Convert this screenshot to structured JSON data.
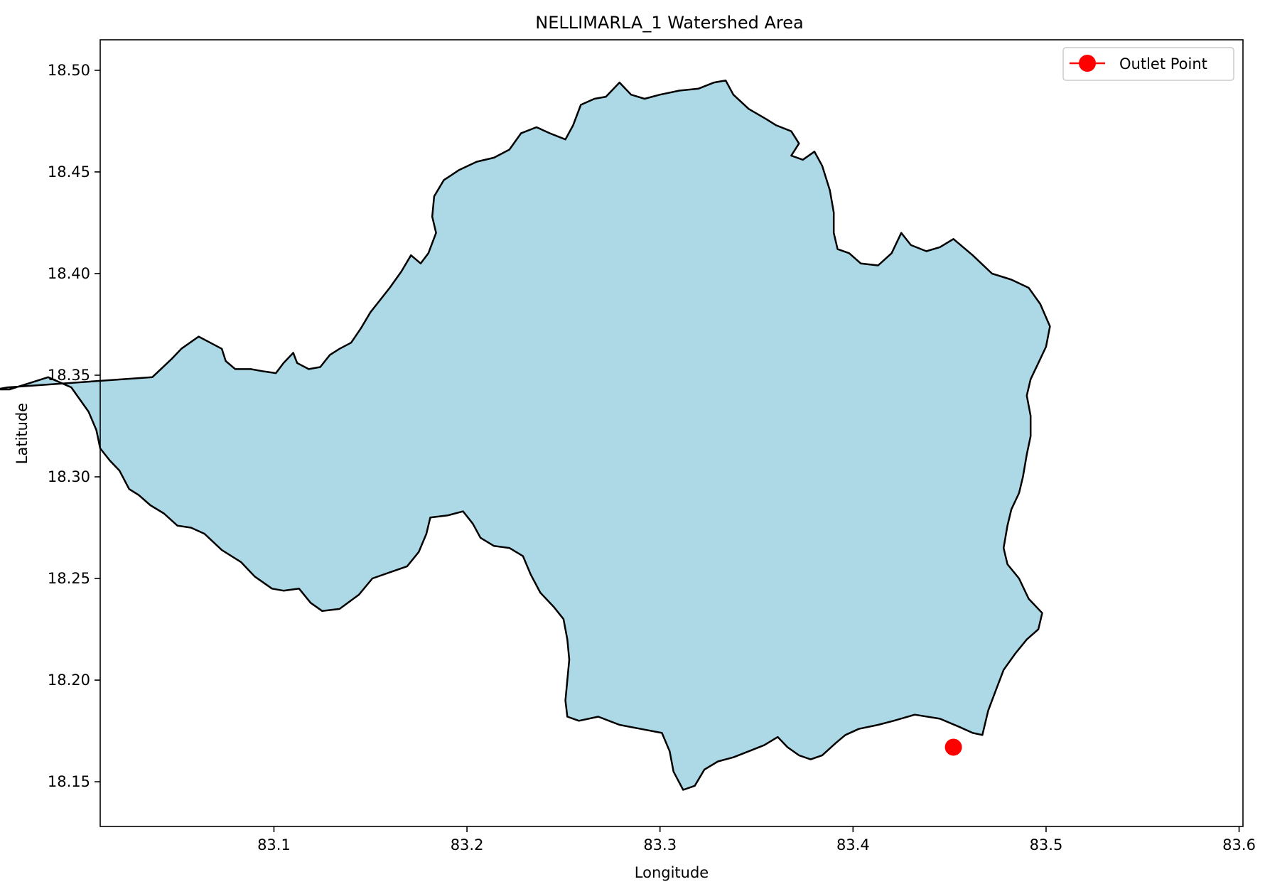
{
  "chart_data": {
    "type": "map",
    "title": "NELLIMARLA_1 Watershed Area",
    "xlabel": "Longitude",
    "ylabel": "Latitude",
    "xlim": [
      83.01,
      83.602
    ],
    "ylim": [
      18.128,
      18.515
    ],
    "xticks": [
      83.1,
      83.2,
      83.3,
      83.4,
      83.5,
      83.6
    ],
    "xtick_labels": [
      "83.1",
      "83.2",
      "83.3",
      "83.4",
      "83.5",
      "83.6"
    ],
    "yticks": [
      18.15,
      18.2,
      18.25,
      18.3,
      18.35,
      18.4,
      18.45,
      18.5
    ],
    "ytick_labels": [
      "18.15",
      "18.20",
      "18.25",
      "18.30",
      "18.35",
      "18.40",
      "18.45",
      "18.50"
    ],
    "grid": false,
    "legend": {
      "position": "top-right",
      "entries": [
        {
          "label": "Outlet Point",
          "color": "#ff0000",
          "marker": "circle"
        }
      ]
    },
    "watershed": {
      "fill": "#add8e6",
      "edge": "#000000",
      "boundary": [
        [
          83.037,
          18.349
        ],
        [
          83.047,
          18.358
        ],
        [
          83.052,
          18.363
        ],
        [
          83.061,
          18.369
        ],
        [
          83.067,
          18.366
        ],
        [
          83.073,
          18.363
        ],
        [
          83.075,
          18.357
        ],
        [
          83.08,
          18.353
        ],
        [
          83.088,
          18.353
        ],
        [
          83.094,
          18.352
        ],
        [
          83.101,
          18.351
        ],
        [
          83.105,
          18.356
        ],
        [
          83.11,
          18.361
        ],
        [
          83.112,
          18.356
        ],
        [
          83.118,
          18.353
        ],
        [
          83.124,
          18.354
        ],
        [
          83.129,
          18.36
        ],
        [
          83.134,
          18.363
        ],
        [
          83.14,
          18.366
        ],
        [
          83.145,
          18.373
        ],
        [
          83.15,
          18.381
        ],
        [
          83.155,
          18.387
        ],
        [
          83.16,
          18.393
        ],
        [
          83.166,
          18.401
        ],
        [
          83.171,
          18.409
        ],
        [
          83.176,
          18.405
        ],
        [
          83.18,
          18.41
        ],
        [
          83.184,
          18.42
        ],
        [
          83.182,
          18.428
        ],
        [
          83.183,
          18.438
        ],
        [
          83.188,
          18.446
        ],
        [
          83.196,
          18.451
        ],
        [
          83.205,
          18.455
        ],
        [
          83.214,
          18.457
        ],
        [
          83.222,
          18.461
        ],
        [
          83.228,
          18.469
        ],
        [
          83.236,
          18.472
        ],
        [
          83.243,
          18.469
        ],
        [
          83.251,
          18.466
        ],
        [
          83.255,
          18.473
        ],
        [
          83.259,
          18.483
        ],
        [
          83.266,
          18.486
        ],
        [
          83.272,
          18.487
        ],
        [
          83.279,
          18.494
        ],
        [
          83.285,
          18.488
        ],
        [
          83.292,
          18.486
        ],
        [
          83.3,
          18.488
        ],
        [
          83.31,
          18.49
        ],
        [
          83.32,
          18.491
        ],
        [
          83.328,
          18.494
        ],
        [
          83.334,
          18.495
        ],
        [
          83.338,
          18.488
        ],
        [
          83.346,
          18.481
        ],
        [
          83.355,
          18.476
        ],
        [
          83.36,
          18.473
        ],
        [
          83.368,
          18.47
        ],
        [
          83.372,
          18.464
        ],
        [
          83.368,
          18.458
        ],
        [
          83.374,
          18.456
        ],
        [
          83.38,
          18.46
        ],
        [
          83.384,
          18.453
        ],
        [
          83.388,
          18.441
        ],
        [
          83.39,
          18.43
        ],
        [
          83.39,
          18.42
        ],
        [
          83.392,
          18.412
        ],
        [
          83.398,
          18.41
        ],
        [
          83.404,
          18.405
        ],
        [
          83.413,
          18.404
        ],
        [
          83.42,
          18.41
        ],
        [
          83.425,
          18.42
        ],
        [
          83.43,
          18.414
        ],
        [
          83.438,
          18.411
        ],
        [
          83.445,
          18.413
        ],
        [
          83.452,
          18.417
        ],
        [
          83.462,
          18.409
        ],
        [
          83.472,
          18.4
        ],
        [
          83.482,
          18.397
        ],
        [
          83.491,
          18.393
        ],
        [
          83.497,
          18.385
        ],
        [
          83.502,
          18.374
        ],
        [
          83.5,
          18.364
        ],
        [
          83.496,
          18.356
        ],
        [
          83.492,
          18.348
        ],
        [
          83.49,
          18.34
        ],
        [
          83.492,
          18.33
        ],
        [
          83.492,
          18.32
        ],
        [
          83.49,
          18.311
        ],
        [
          83.488,
          18.3
        ],
        [
          83.486,
          18.292
        ],
        [
          83.482,
          18.284
        ],
        [
          83.48,
          18.276
        ],
        [
          83.478,
          18.265
        ],
        [
          83.48,
          18.257
        ],
        [
          83.486,
          18.25
        ],
        [
          83.491,
          18.24
        ],
        [
          83.498,
          18.233
        ],
        [
          83.496,
          18.225
        ],
        [
          83.49,
          18.22
        ],
        [
          83.484,
          18.213
        ],
        [
          83.478,
          18.205
        ],
        [
          83.474,
          18.195
        ],
        [
          83.47,
          18.185
        ],
        [
          83.467,
          18.173
        ],
        [
          83.462,
          18.174
        ],
        [
          83.455,
          18.177
        ],
        [
          83.445,
          18.181
        ],
        [
          83.432,
          18.183
        ],
        [
          83.421,
          18.18
        ],
        [
          83.413,
          18.178
        ],
        [
          83.403,
          18.176
        ],
        [
          83.396,
          18.173
        ],
        [
          83.391,
          18.169
        ],
        [
          83.384,
          18.163
        ],
        [
          83.378,
          18.161
        ],
        [
          83.372,
          18.163
        ],
        [
          83.366,
          18.167
        ],
        [
          83.361,
          18.172
        ],
        [
          83.354,
          18.168
        ],
        [
          83.346,
          18.165
        ],
        [
          83.338,
          18.162
        ],
        [
          83.33,
          18.16
        ],
        [
          83.323,
          18.156
        ],
        [
          83.318,
          18.148
        ],
        [
          83.312,
          18.146
        ],
        [
          83.307,
          18.155
        ],
        [
          83.305,
          18.165
        ],
        [
          83.301,
          18.174
        ],
        [
          83.29,
          18.176
        ],
        [
          83.279,
          18.178
        ],
        [
          83.268,
          18.182
        ],
        [
          83.258,
          18.18
        ],
        [
          83.252,
          18.182
        ],
        [
          83.251,
          18.19
        ],
        [
          83.252,
          18.2
        ],
        [
          83.253,
          18.21
        ],
        [
          83.252,
          18.22
        ],
        [
          83.25,
          18.23
        ],
        [
          83.245,
          18.236
        ],
        [
          83.238,
          18.243
        ],
        [
          83.233,
          18.252
        ],
        [
          83.229,
          18.261
        ],
        [
          83.222,
          18.265
        ],
        [
          83.214,
          18.266
        ],
        [
          83.207,
          18.27
        ],
        [
          83.203,
          18.277
        ],
        [
          83.198,
          18.283
        ],
        [
          83.19,
          18.281
        ],
        [
          83.181,
          18.28
        ],
        [
          83.179,
          18.272
        ],
        [
          83.175,
          18.263
        ],
        [
          83.169,
          18.256
        ],
        [
          83.16,
          18.253
        ],
        [
          83.151,
          18.25
        ],
        [
          83.144,
          18.242
        ],
        [
          83.134,
          18.235
        ],
        [
          83.125,
          18.234
        ],
        [
          83.119,
          18.238
        ],
        [
          83.113,
          18.245
        ],
        [
          83.105,
          18.244
        ],
        [
          83.099,
          18.245
        ],
        [
          83.09,
          18.251
        ],
        [
          83.083,
          18.258
        ],
        [
          83.073,
          18.264
        ],
        [
          83.064,
          18.272
        ],
        [
          83.057,
          18.275
        ],
        [
          83.05,
          18.276
        ],
        [
          83.043,
          18.282
        ],
        [
          83.036,
          18.286
        ],
        [
          83.03,
          18.291
        ],
        [
          83.025,
          18.294
        ],
        [
          83.02,
          18.303
        ],
        [
          83.015,
          18.308
        ],
        [
          83.01,
          18.314
        ],
        [
          83.008,
          18.323
        ],
        [
          83.004,
          18.332
        ],
        [
          82.995,
          18.344
        ],
        [
          82.983,
          18.349
        ],
        [
          82.973,
          18.346
        ],
        [
          82.963,
          18.343
        ],
        [
          82.956,
          18.343
        ],
        [
          82.962,
          18.344
        ]
      ]
    },
    "outlet_point": {
      "label": "Outlet Point",
      "x": 83.452,
      "y": 18.167,
      "color": "#ff0000"
    }
  }
}
